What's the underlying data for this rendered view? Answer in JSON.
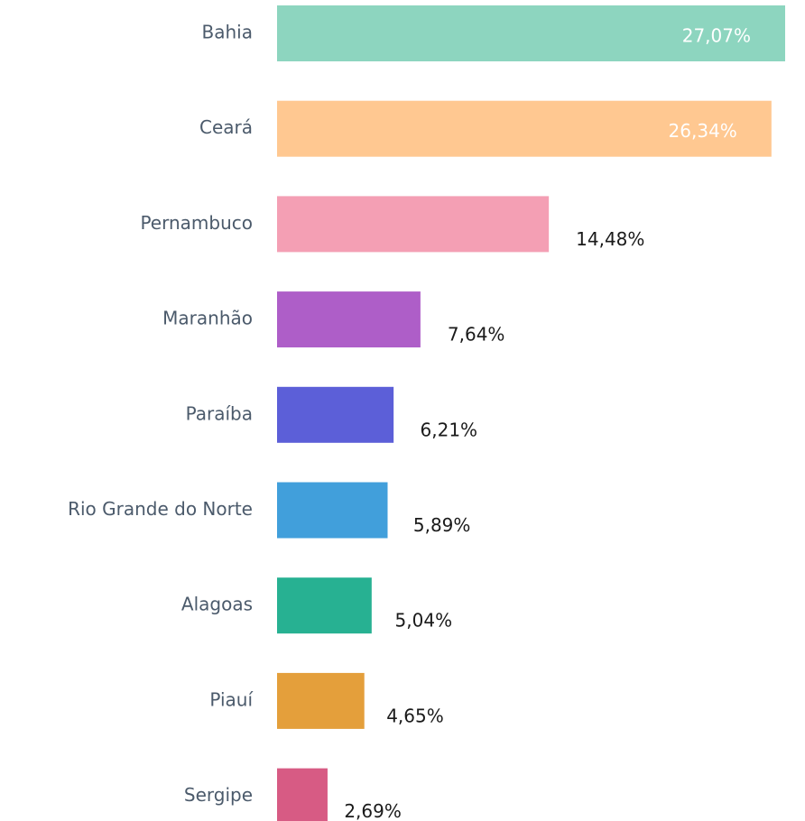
{
  "chart_data": {
    "type": "barh",
    "categories": [
      "Bahia",
      "Ceará",
      "Pernambuco",
      "Maranhão",
      "Paraíba",
      "Rio Grande do Norte",
      "Alagoas",
      "Piauí",
      "Sergipe"
    ],
    "values": [
      27.07,
      26.34,
      14.48,
      7.64,
      6.21,
      5.89,
      5.04,
      4.65,
      2.69
    ],
    "value_labels": [
      "27,07%",
      "26,34%",
      "14,48%",
      "7,64%",
      "6,21%",
      "5,89%",
      "5,04%",
      "4,65%",
      "2,69%"
    ],
    "colors": [
      "#8dd5bf",
      "#ffc891",
      "#f49fb4",
      "#ae5ec8",
      "#5c5fd8",
      "#419fdb",
      "#27b192",
      "#e49f3b",
      "#d75b84"
    ]
  }
}
